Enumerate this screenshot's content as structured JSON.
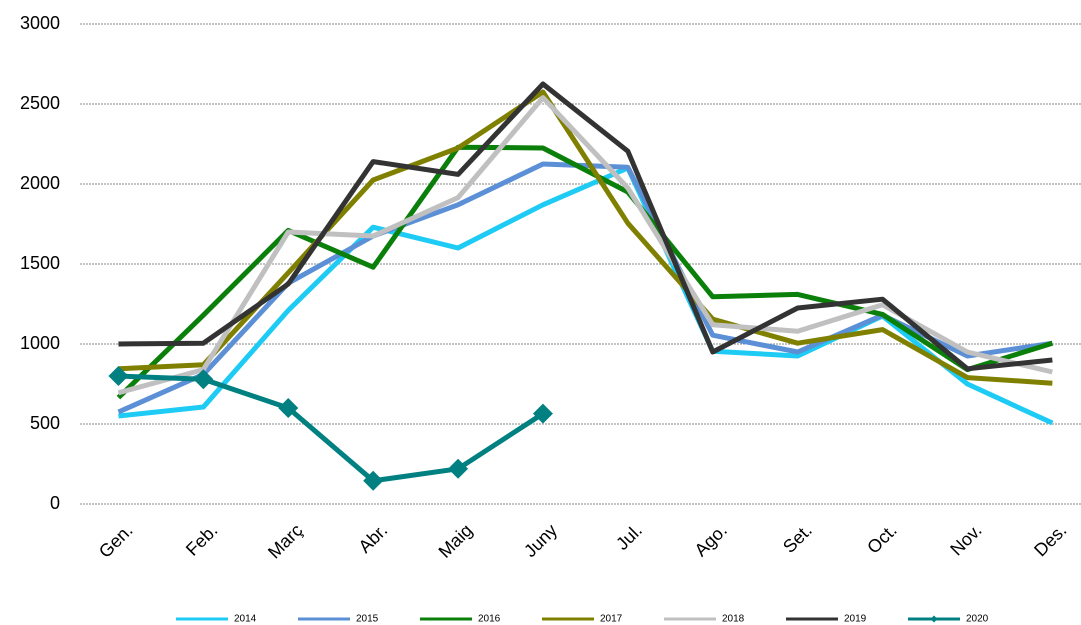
{
  "chart_data": {
    "type": "line",
    "categories": [
      "Gen.",
      "Feb.",
      "Març",
      "Abr.",
      "Maig",
      "Juny",
      "Jul.",
      "Ago.",
      "Set.",
      "Oct.",
      "Nov.",
      "Des."
    ],
    "series": [
      {
        "name": "2014",
        "color": "#1ecbf5",
        "values": [
          550,
          606,
          1210,
          1730,
          1600,
          1870,
          2100,
          955,
          925,
          1175,
          750,
          506
        ]
      },
      {
        "name": "2015",
        "color": "#5b8fd6",
        "values": [
          575,
          810,
          1380,
          1675,
          1870,
          2125,
          2105,
          1055,
          950,
          1180,
          925,
          1005
        ]
      },
      {
        "name": "2016",
        "color": "#0a7f0a",
        "values": [
          665,
          1180,
          1710,
          1480,
          2230,
          2225,
          1950,
          1295,
          1310,
          1185,
          840,
          1005
        ]
      },
      {
        "name": "2017",
        "color": "#808000",
        "values": [
          845,
          870,
          1445,
          2025,
          2225,
          2575,
          1755,
          1155,
          1005,
          1090,
          790,
          755
        ]
      },
      {
        "name": "2018",
        "color": "#c0c0c0",
        "values": [
          695,
          840,
          1700,
          1675,
          1915,
          2540,
          1975,
          1120,
          1080,
          1245,
          950,
          825
        ]
      },
      {
        "name": "2019",
        "color": "#333333",
        "values": [
          1000,
          1005,
          1375,
          2140,
          2060,
          2625,
          2205,
          950,
          1225,
          1280,
          845,
          900
        ]
      },
      {
        "name": "2020",
        "color": "#008080",
        "marker": "diamond",
        "values": [
          800,
          780,
          600,
          145,
          220,
          565,
          null,
          null,
          null,
          null,
          null,
          null
        ]
      }
    ],
    "ylim": [
      0,
      3000
    ],
    "yticks": [
      0,
      500,
      1000,
      1500,
      2000,
      2500,
      3000
    ],
    "grid": true,
    "legend": "bottom"
  }
}
